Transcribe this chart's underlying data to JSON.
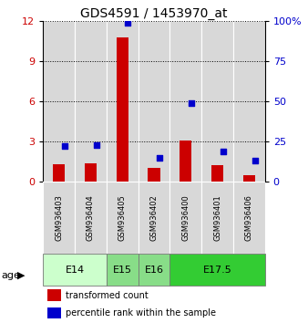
{
  "title": "GDS4591 / 1453970_at",
  "samples": [
    "GSM936403",
    "GSM936404",
    "GSM936405",
    "GSM936402",
    "GSM936400",
    "GSM936401",
    "GSM936406"
  ],
  "red_values": [
    1.3,
    1.4,
    10.8,
    1.0,
    3.1,
    1.2,
    0.5
  ],
  "blue_values": [
    22,
    23,
    99,
    15,
    49,
    19,
    13
  ],
  "age_groups": [
    {
      "label": "E14",
      "span": [
        0,
        2
      ],
      "color": "#ccffcc"
    },
    {
      "label": "E15",
      "span": [
        2,
        3
      ],
      "color": "#88dd88"
    },
    {
      "label": "E16",
      "span": [
        3,
        4
      ],
      "color": "#88dd88"
    },
    {
      "label": "E17.5",
      "span": [
        4,
        7
      ],
      "color": "#33cc33"
    }
  ],
  "ylim_left": [
    0,
    12
  ],
  "ylim_right": [
    0,
    100
  ],
  "yticks_left": [
    0,
    3,
    6,
    9,
    12
  ],
  "yticks_right": [
    0,
    25,
    50,
    75,
    100
  ],
  "bar_color": "#cc0000",
  "dot_color": "#0000cc",
  "bg_color": "#d8d8d8",
  "legend_red": "transformed count",
  "legend_blue": "percentile rank within the sample"
}
